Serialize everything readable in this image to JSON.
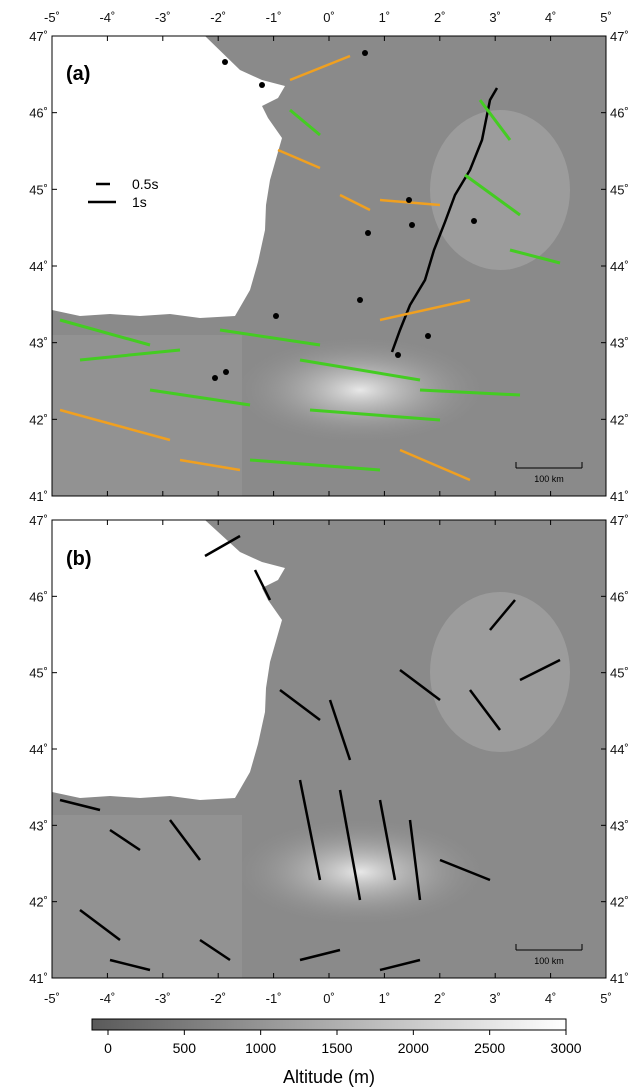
{
  "panels": [
    {
      "label": "(a)",
      "legend": {
        "items": [
          {
            "text": "0.5s"
          },
          {
            "text": "1s"
          }
        ]
      },
      "scale_bar": "100 km"
    },
    {
      "label": "(b)",
      "scale_bar": "100 km"
    }
  ],
  "axes": {
    "lon_ticks": [
      "-5˚",
      "-4˚",
      "-3˚",
      "-2˚",
      "-1˚",
      "0˚",
      "1˚",
      "2˚",
      "3˚",
      "4˚",
      "5˚"
    ],
    "lat_ticks": [
      "47˚",
      "46˚",
      "45˚",
      "44˚",
      "43˚",
      "42˚",
      "41˚"
    ],
    "lon_range": [
      -5,
      5
    ],
    "lat_range": [
      41,
      47
    ]
  },
  "colorbar": {
    "title": "Altitude (m)",
    "ticks": [
      "0",
      "500",
      "1000",
      "1500",
      "2000",
      "2500",
      "3000"
    ],
    "range": [
      0,
      3000
    ]
  },
  "colors": {
    "ocean": "#ffffff",
    "land": "#8a8a8a",
    "mountains_high": "#dcdcdc",
    "split_orange": "#f0a020",
    "split_green": "#44cc22",
    "fault": "#000000",
    "station_dots": "#000000"
  },
  "icons": [
    "station-dot-icon",
    "splitting-bar-icon"
  ]
}
